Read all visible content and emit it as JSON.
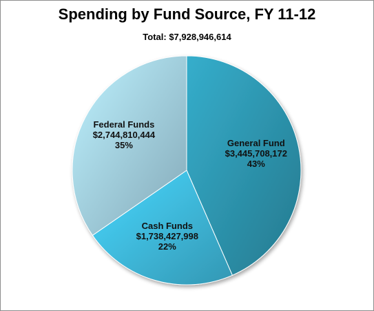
{
  "chart_data": {
    "type": "pie",
    "title": "Spending by Fund Source, FY 11-12",
    "subtitle": "Total: $7,928,946,614",
    "slices": [
      {
        "name": "General Fund",
        "amount": "$3,445,708,172",
        "value": 3445708172,
        "percent": "43%",
        "color": "#2f9bb6"
      },
      {
        "name": "Cash Funds",
        "amount": "$1,738,427,998",
        "value": 1738427998,
        "percent": "22%",
        "color": "#41c1e6"
      },
      {
        "name": "Federal Funds",
        "amount": "$2,744,810,444",
        "value": 2744810444,
        "percent": "35%",
        "color": "#a9d8ea"
      }
    ]
  }
}
